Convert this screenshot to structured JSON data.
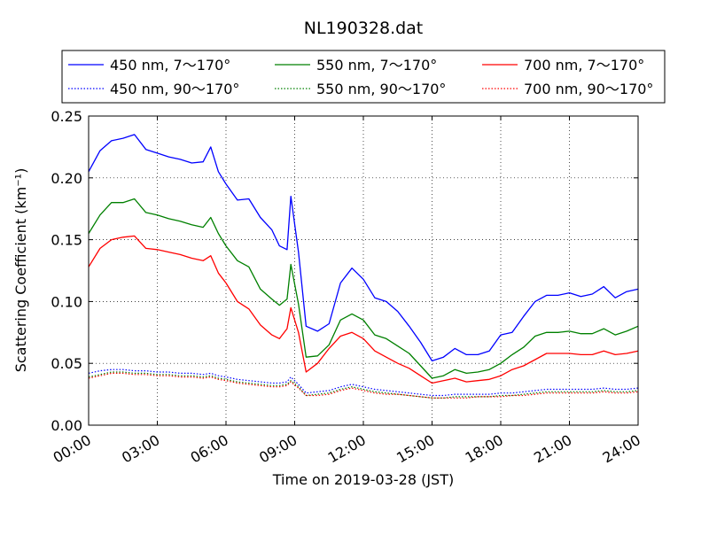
{
  "chart_data": {
    "type": "line",
    "title": "NL190328.dat",
    "xlabel": "Time on 2019-03-28 (JST)",
    "ylabel": "Scattering Coefficient (km⁻¹)",
    "xlim": [
      "00:00",
      "24:00"
    ],
    "ylim": [
      0.0,
      0.25
    ],
    "x_ticks": [
      "00:00",
      "03:00",
      "06:00",
      "09:00",
      "12:00",
      "15:00",
      "18:00",
      "21:00",
      "24:00"
    ],
    "y_ticks": [
      "0.00",
      "0.05",
      "0.10",
      "0.15",
      "0.20",
      "0.25"
    ],
    "grid": true,
    "legend_position": "top, above plot",
    "x": [
      "00:00",
      "00:30",
      "01:00",
      "01:30",
      "02:00",
      "02:30",
      "03:00",
      "03:30",
      "04:00",
      "04:30",
      "05:00",
      "05:20",
      "05:40",
      "06:00",
      "06:30",
      "07:00",
      "07:30",
      "08:00",
      "08:20",
      "08:40",
      "08:50",
      "09:10",
      "09:30",
      "10:00",
      "10:30",
      "11:00",
      "11:30",
      "12:00",
      "12:30",
      "13:00",
      "13:30",
      "14:00",
      "14:30",
      "15:00",
      "15:30",
      "16:00",
      "16:30",
      "17:00",
      "17:30",
      "18:00",
      "18:30",
      "19:00",
      "19:30",
      "20:00",
      "20:30",
      "21:00",
      "21:30",
      "22:00",
      "22:30",
      "23:00",
      "23:30",
      "24:00"
    ],
    "series": [
      {
        "name": "450 nm, 7～170°",
        "color": "#0000ff",
        "style": "solid",
        "values": [
          0.205,
          0.222,
          0.23,
          0.232,
          0.235,
          0.223,
          0.22,
          0.217,
          0.215,
          0.212,
          0.213,
          0.225,
          0.205,
          0.195,
          0.182,
          0.183,
          0.168,
          0.158,
          0.145,
          0.142,
          0.185,
          0.14,
          0.08,
          0.076,
          0.082,
          0.115,
          0.127,
          0.118,
          0.103,
          0.1,
          0.092,
          0.08,
          0.067,
          0.052,
          0.055,
          0.062,
          0.057,
          0.057,
          0.06,
          0.073,
          0.075,
          0.088,
          0.1,
          0.105,
          0.105,
          0.107,
          0.104,
          0.106,
          0.112,
          0.103,
          0.108,
          0.11
        ]
      },
      {
        "name": "550 nm, 7～170°",
        "color": "#008000",
        "style": "solid",
        "values": [
          0.155,
          0.17,
          0.18,
          0.18,
          0.183,
          0.172,
          0.17,
          0.167,
          0.165,
          0.162,
          0.16,
          0.168,
          0.155,
          0.145,
          0.133,
          0.128,
          0.11,
          0.102,
          0.097,
          0.102,
          0.13,
          0.098,
          0.055,
          0.056,
          0.065,
          0.085,
          0.09,
          0.085,
          0.073,
          0.07,
          0.064,
          0.058,
          0.048,
          0.038,
          0.04,
          0.045,
          0.042,
          0.043,
          0.045,
          0.05,
          0.057,
          0.063,
          0.072,
          0.075,
          0.075,
          0.076,
          0.074,
          0.074,
          0.078,
          0.073,
          0.076,
          0.08
        ]
      },
      {
        "name": "700 nm, 7～170°",
        "color": "#ff0000",
        "style": "solid",
        "values": [
          0.128,
          0.143,
          0.15,
          0.152,
          0.153,
          0.143,
          0.142,
          0.14,
          0.138,
          0.135,
          0.133,
          0.137,
          0.123,
          0.115,
          0.1,
          0.094,
          0.081,
          0.073,
          0.07,
          0.078,
          0.095,
          0.075,
          0.043,
          0.05,
          0.062,
          0.072,
          0.075,
          0.07,
          0.06,
          0.055,
          0.05,
          0.046,
          0.04,
          0.034,
          0.036,
          0.038,
          0.035,
          0.036,
          0.037,
          0.04,
          0.045,
          0.048,
          0.053,
          0.058,
          0.058,
          0.058,
          0.057,
          0.057,
          0.06,
          0.057,
          0.058,
          0.06
        ]
      },
      {
        "name": "450 nm, 90～170°",
        "color": "#0000ff",
        "style": "dotted",
        "values": [
          0.042,
          0.044,
          0.045,
          0.045,
          0.044,
          0.044,
          0.043,
          0.043,
          0.042,
          0.042,
          0.041,
          0.042,
          0.04,
          0.039,
          0.037,
          0.036,
          0.035,
          0.034,
          0.034,
          0.035,
          0.039,
          0.033,
          0.026,
          0.027,
          0.028,
          0.031,
          0.033,
          0.031,
          0.029,
          0.028,
          0.027,
          0.026,
          0.025,
          0.024,
          0.024,
          0.025,
          0.025,
          0.025,
          0.025,
          0.026,
          0.026,
          0.027,
          0.028,
          0.029,
          0.029,
          0.029,
          0.029,
          0.029,
          0.03,
          0.029,
          0.029,
          0.03
        ]
      },
      {
        "name": "550 nm, 90～170°",
        "color": "#008000",
        "style": "dotted",
        "values": [
          0.039,
          0.041,
          0.043,
          0.043,
          0.042,
          0.042,
          0.041,
          0.041,
          0.04,
          0.04,
          0.039,
          0.04,
          0.038,
          0.037,
          0.035,
          0.034,
          0.033,
          0.032,
          0.032,
          0.033,
          0.036,
          0.031,
          0.024,
          0.025,
          0.026,
          0.029,
          0.031,
          0.029,
          0.027,
          0.026,
          0.025,
          0.024,
          0.023,
          0.022,
          0.022,
          0.023,
          0.023,
          0.023,
          0.023,
          0.024,
          0.024,
          0.025,
          0.026,
          0.027,
          0.027,
          0.027,
          0.027,
          0.027,
          0.028,
          0.027,
          0.027,
          0.028
        ]
      },
      {
        "name": "700 nm, 90～170°",
        "color": "#ff0000",
        "style": "dotted",
        "values": [
          0.038,
          0.04,
          0.042,
          0.042,
          0.041,
          0.041,
          0.04,
          0.04,
          0.039,
          0.039,
          0.038,
          0.039,
          0.037,
          0.036,
          0.034,
          0.033,
          0.032,
          0.031,
          0.031,
          0.032,
          0.035,
          0.03,
          0.024,
          0.024,
          0.025,
          0.028,
          0.03,
          0.028,
          0.026,
          0.025,
          0.025,
          0.024,
          0.023,
          0.022,
          0.022,
          0.022,
          0.022,
          0.023,
          0.023,
          0.023,
          0.024,
          0.024,
          0.025,
          0.026,
          0.026,
          0.026,
          0.026,
          0.026,
          0.027,
          0.026,
          0.026,
          0.027
        ]
      }
    ]
  }
}
